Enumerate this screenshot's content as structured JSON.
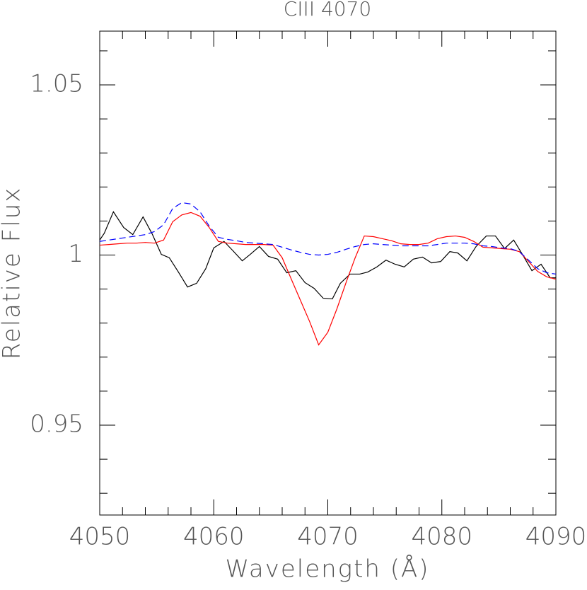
{
  "chart_data": {
    "type": "line",
    "title": "CIII 4070",
    "x_label": "Wavelength (Å)",
    "y_label": "Relative Flux",
    "xlim": [
      4050,
      4090
    ],
    "ylim": [
      0.9236,
      1.0658
    ],
    "xticks": [
      4050,
      4060,
      4070,
      4080,
      4090
    ],
    "xminorticks": [
      4052,
      4054,
      4056,
      4058,
      4062,
      4064,
      4066,
      4068,
      4072,
      4074,
      4076,
      4078,
      4082,
      4084,
      4086,
      4088
    ],
    "yticks": [
      0.95,
      1,
      1.05
    ],
    "yminorticks": [
      0.93,
      0.94,
      0.96,
      0.97,
      0.98,
      0.99,
      1.01,
      1.02,
      1.03,
      1.04,
      1.06
    ],
    "series": [
      {
        "color": "#000000",
        "linestyle": "solid",
        "x": [
          4050,
          4050.4,
          4051.2,
          4052.1,
          4052.9,
          4053.8,
          4054.6,
          4055.4,
          4056.1,
          4056.9,
          4057.7,
          4058.5,
          4059.3,
          4060.0,
          4060.9,
          4061.7,
          4062.5,
          4063.2,
          4064.0,
          4064.8,
          4065.6,
          4066.4,
          4067.2,
          4068.0,
          4068.8,
          4069.6,
          4070.4,
          4071.1,
          4071.95,
          4072.8,
          4073.5,
          4074.3,
          4075.1,
          4075.9,
          4076.7,
          4077.5,
          4078.3,
          4079.1,
          4079.9,
          4080.7,
          4081.4,
          4082.2,
          4083.0,
          4083.9,
          4084.7,
          4085.5,
          4086.3,
          4087.1,
          4087.9,
          4088.7,
          4089.5,
          4090
        ],
        "values": [
          1.0044,
          1.0064,
          1.0127,
          1.0081,
          1.006,
          1.0112,
          1.0062,
          1.0002,
          0.9992,
          0.995,
          0.9906,
          0.9917,
          0.996,
          1.0021,
          1.004,
          1.0012,
          0.9983,
          1.0002,
          1.0025,
          0.9996,
          0.9988,
          0.9948,
          0.9954,
          0.9919,
          0.9902,
          0.9873,
          0.9871,
          0.9917,
          0.9944,
          0.9944,
          0.995,
          0.9965,
          0.9985,
          0.9973,
          0.9965,
          0.9988,
          0.9994,
          0.9977,
          0.9981,
          1.001,
          1.0006,
          0.9983,
          1.0025,
          1.0056,
          1.0056,
          1.0019,
          1.0044,
          1.0,
          0.9954,
          0.9973,
          0.9933,
          0.9933
        ]
      },
      {
        "color": "#ff0000",
        "linestyle": "solid",
        "x": [
          4050,
          4050.8,
          4051.6,
          4052.4,
          4053.2,
          4054.0,
          4054.8,
          4055.6,
          4056.4,
          4057.2,
          4058.0,
          4058.8,
          4059.6,
          4060.4,
          4061.2,
          4062.0,
          4062.8,
          4063.6,
          4064.4,
          4065.2,
          4066.0,
          4066.8,
          4067.6,
          4068.4,
          4069.2,
          4070.0,
          4070.8,
          4071.6,
          4072.4,
          4073.2,
          4074.0,
          4074.8,
          4075.6,
          4076.4,
          4077.2,
          4078.0,
          4078.8,
          4079.6,
          4080.4,
          4081.2,
          4082.0,
          4082.8,
          4083.6,
          4084.4,
          4085.2,
          4086.0,
          4086.8,
          4087.6,
          4088.4,
          4089.2,
          4090.0
        ],
        "values": [
          1.0029,
          1.0031,
          1.0033,
          1.0035,
          1.0035,
          1.0037,
          1.0035,
          1.0044,
          1.0098,
          1.0118,
          1.0125,
          1.0114,
          1.0081,
          1.004,
          1.0035,
          1.0033,
          1.0031,
          1.0031,
          1.0031,
          1.0029,
          0.9992,
          0.9929,
          0.9867,
          0.9805,
          0.9736,
          0.9773,
          0.9842,
          0.9919,
          0.9992,
          1.0056,
          1.0054,
          1.0048,
          1.0042,
          1.0033,
          1.0031,
          1.0031,
          1.0035,
          1.0048,
          1.0054,
          1.0056,
          1.0052,
          1.004,
          1.0023,
          1.0021,
          1.0019,
          1.0017,
          1.001,
          0.9981,
          0.9952,
          0.9936,
          0.9929
        ]
      },
      {
        "color": "#0000ff",
        "linestyle": "dashed",
        "x": [
          4050,
          4050.8,
          4051.6,
          4052.4,
          4053.2,
          4054.0,
          4054.8,
          4055.6,
          4056.4,
          4057.2,
          4058.0,
          4058.8,
          4059.6,
          4060.4,
          4061.2,
          4062.0,
          4062.8,
          4063.6,
          4064.4,
          4065.2,
          4066.0,
          4066.8,
          4067.6,
          4068.4,
          4069.2,
          4070.0,
          4070.8,
          4071.6,
          4072.4,
          4073.2,
          4074.0,
          4074.8,
          4075.6,
          4076.4,
          4077.2,
          4078.0,
          4078.8,
          4079.6,
          4080.4,
          4081.2,
          4082.0,
          4082.8,
          4083.6,
          4084.4,
          4085.2,
          4086.0,
          4086.8,
          4087.6,
          4088.4,
          4089.2,
          4090.0
        ],
        "values": [
          1.004,
          1.0044,
          1.0048,
          1.0052,
          1.0056,
          1.006,
          1.0069,
          1.0089,
          1.0137,
          1.0154,
          1.015,
          1.0127,
          1.0085,
          1.0052,
          1.0046,
          1.0042,
          1.0037,
          1.0035,
          1.0033,
          1.0031,
          1.0023,
          1.0015,
          1.0008,
          1.0002,
          1.0,
          1.0002,
          1.0008,
          1.0017,
          1.0025,
          1.0031,
          1.0033,
          1.0031,
          1.0029,
          1.0027,
          1.0027,
          1.0027,
          1.0027,
          1.0031,
          1.0035,
          1.0035,
          1.0035,
          1.0033,
          1.0027,
          1.0025,
          1.0021,
          1.0019,
          1.001,
          0.9985,
          0.996,
          0.9948,
          0.9944
        ]
      }
    ]
  }
}
